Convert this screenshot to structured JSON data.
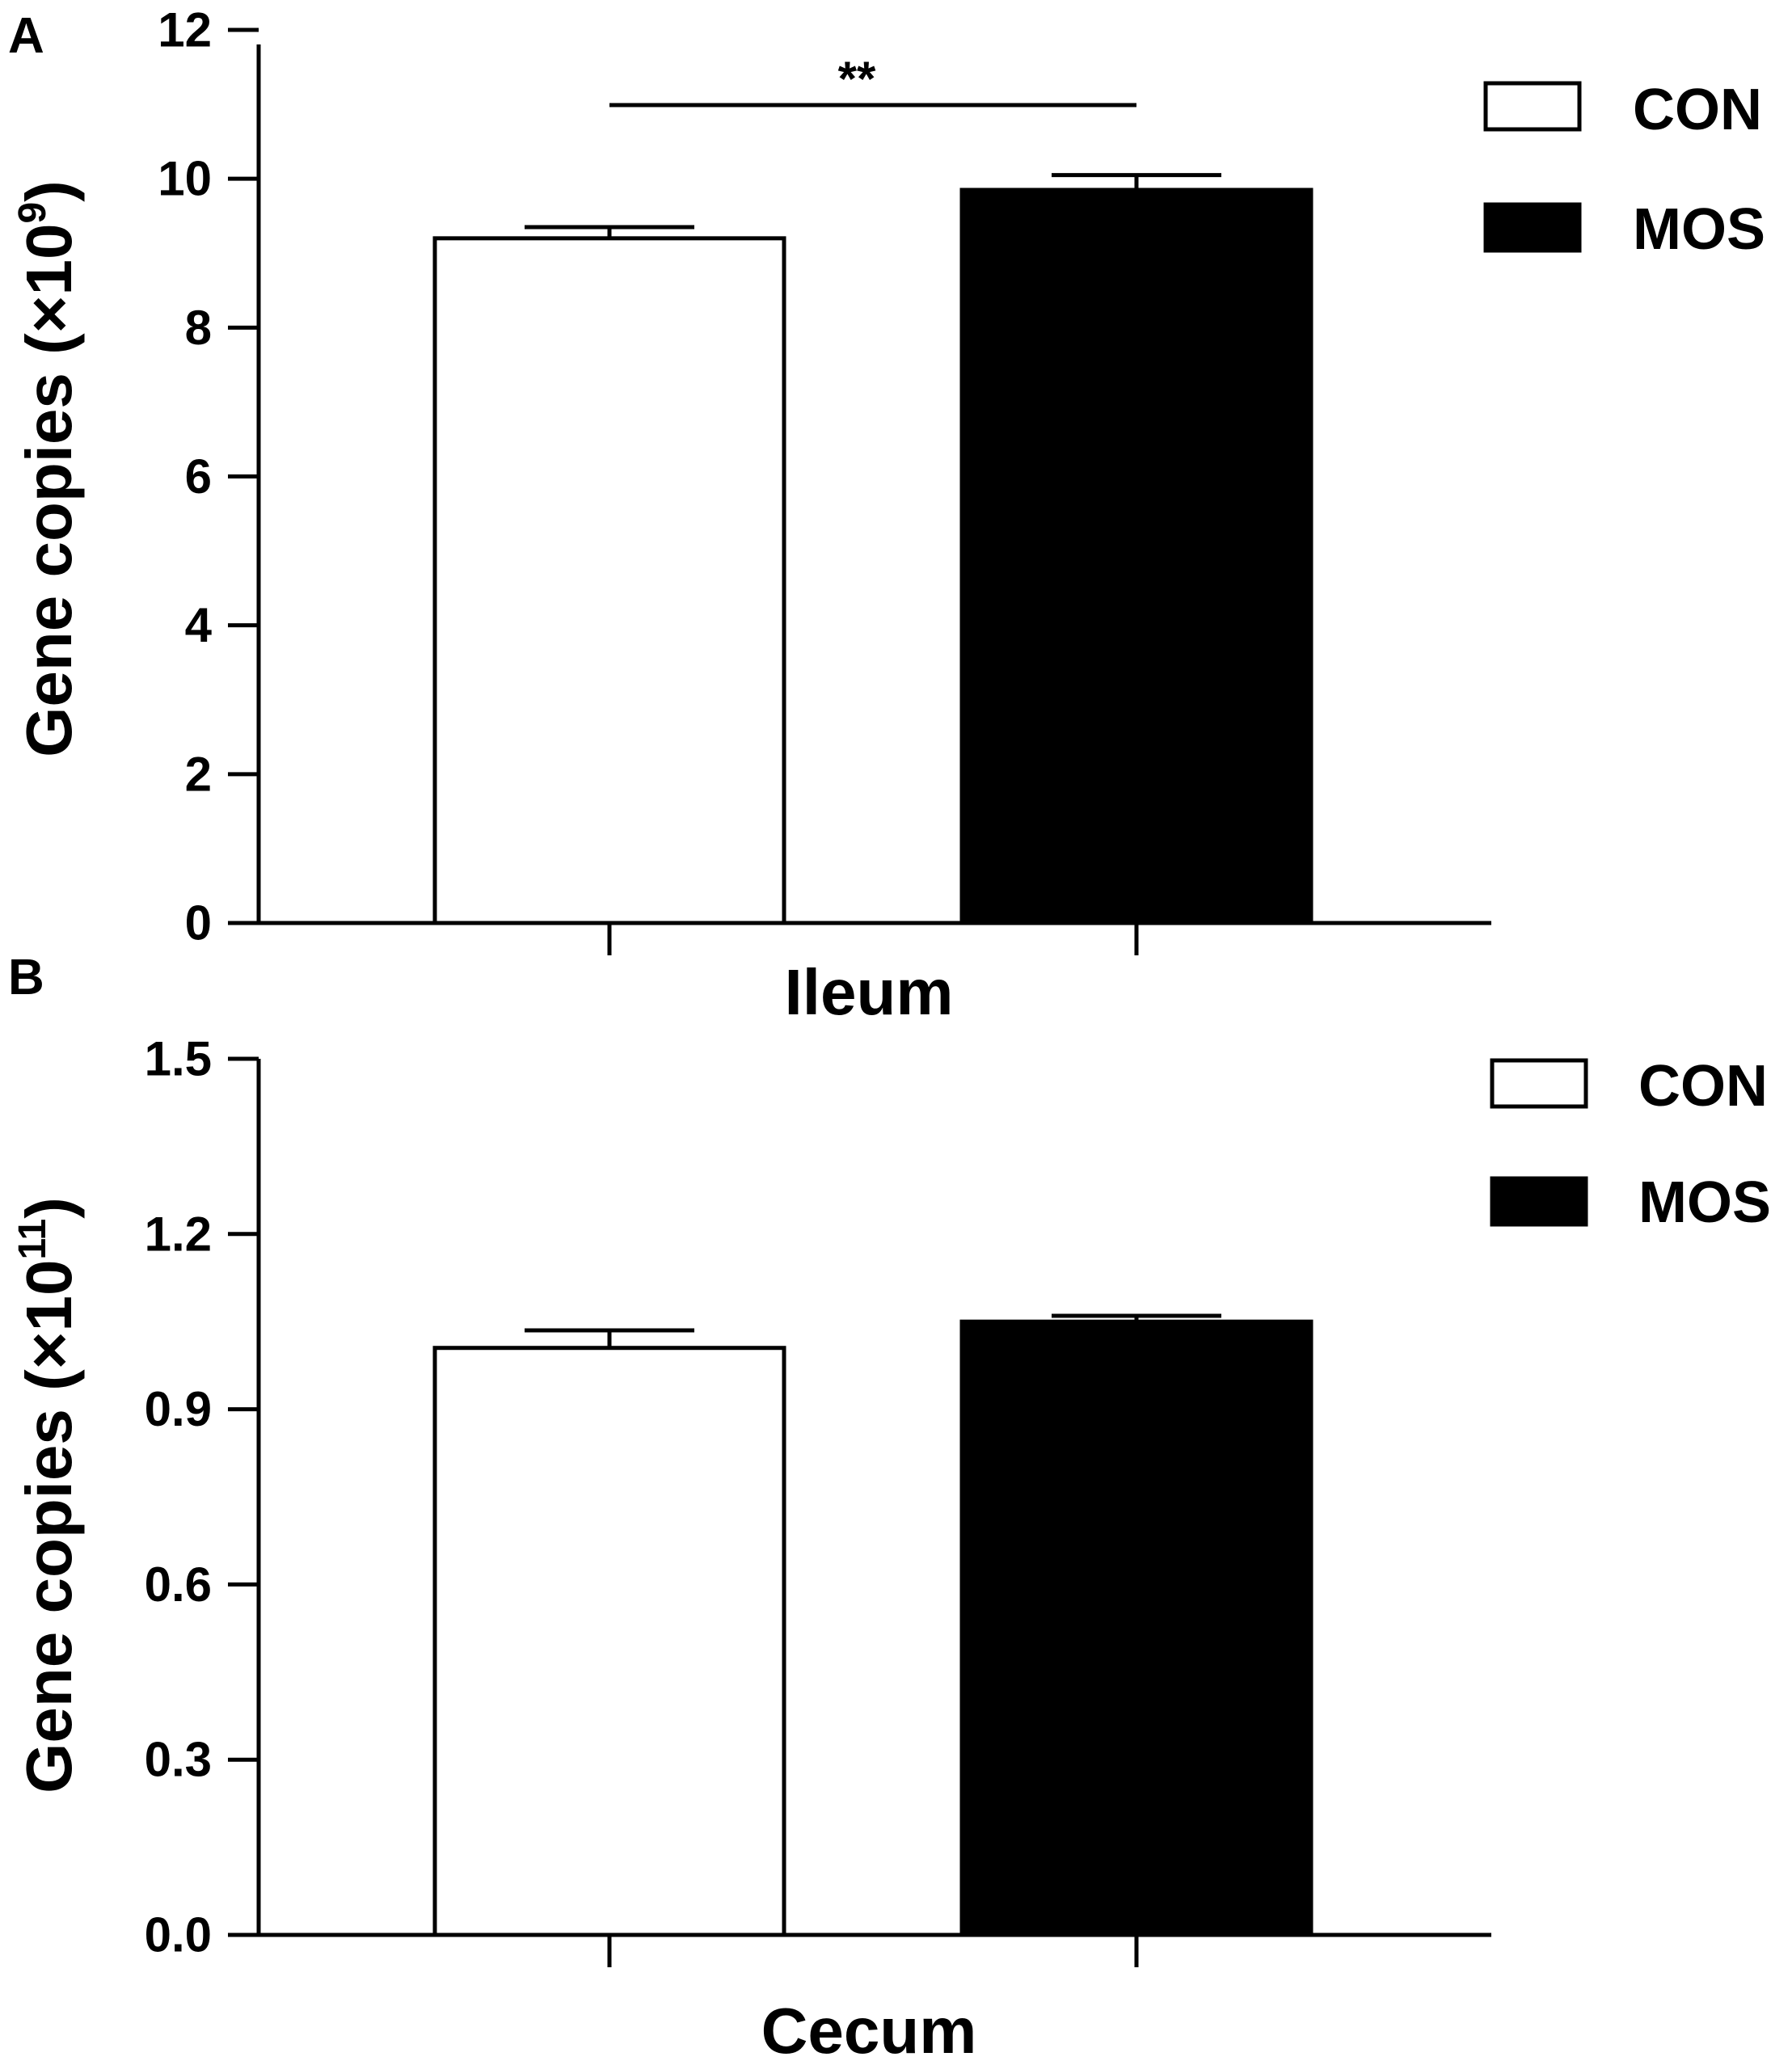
{
  "chart_data": [
    {
      "panel": "A",
      "type": "bar",
      "categories": [
        "CON",
        "MOS"
      ],
      "values": [
        9.2,
        9.85
      ],
      "errors": [
        0.15,
        0.2
      ],
      "colors": [
        "#ffffff",
        "#000000"
      ],
      "xlabel": "Ileum",
      "ylabel": "Gene copies (×10",
      "ylabel_exp": "9",
      "ylabel_close": ")",
      "ylim": [
        0,
        12
      ],
      "yticks": [
        "0",
        "2",
        "4",
        "6",
        "8",
        "10",
        "12"
      ],
      "significance": "**",
      "legend": [
        "CON",
        "MOS"
      ],
      "legend_position": "top-right",
      "grid": false
    },
    {
      "panel": "B",
      "type": "bar",
      "categories": [
        "CON",
        "MOS"
      ],
      "values": [
        1.005,
        1.05
      ],
      "errors": [
        0.03,
        0.01
      ],
      "colors": [
        "#ffffff",
        "#000000"
      ],
      "xlabel": "Cecum",
      "ylabel": "Gene copies (×10",
      "ylabel_exp": "11",
      "ylabel_close": ")",
      "ylim": [
        0,
        1.5
      ],
      "yticks": [
        "0.0",
        "0.3",
        "0.6",
        "0.9",
        "1.2",
        "1.5"
      ],
      "legend": [
        "CON",
        "MOS"
      ],
      "legend_position": "top-right",
      "grid": false
    }
  ]
}
